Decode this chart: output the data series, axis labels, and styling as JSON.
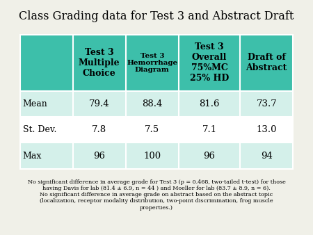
{
  "title": "Class Grading data for Test 3 and Abstract Draft",
  "col_headers": [
    "Test 3\nMultiple\nChoice",
    "Test 3\nHemorrhage\nDiagram",
    "Test 3\nOverall\n75%MC\n25% HD",
    "Draft of\nAbstract"
  ],
  "row_headers": [
    "Mean",
    "St. Dev.",
    "Max"
  ],
  "data": [
    [
      "79.4",
      "88.4",
      "81.6",
      "73.7"
    ],
    [
      "7.8",
      "7.5",
      "7.1",
      "13.0"
    ],
    [
      "96",
      "100",
      "96",
      "94"
    ]
  ],
  "header_bg": "#3dbfaa",
  "row_bg_light": "#d4f0ea",
  "row_bg_white": "#ffffff",
  "text_color": "#1a1a1a",
  "header_text_color": "#000000",
  "footer_text": "No significant difference in average grade for Test 3 (p = 0.468, two-tailed t-test) for those\nhaving Davis for lab (81.4 ± 6.9, n = 44 ) and Moeller for lab (83.7 ± 8.9, n = 6).\nNo significant difference in average grade on abstract based on the abstract topic\n(localization, receptor modality distribution, two-point discrimination, frog muscle\nproperties.)",
  "background_color": "#f0f0e8"
}
